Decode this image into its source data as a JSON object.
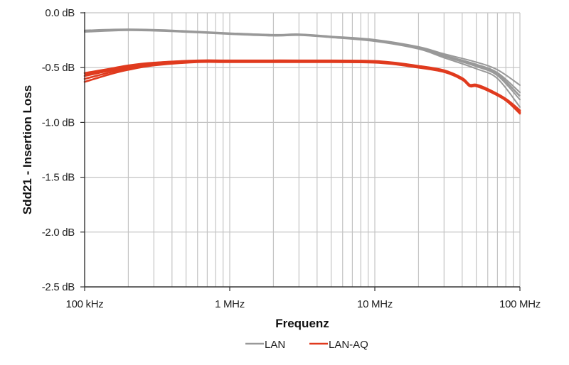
{
  "chart_data": {
    "type": "line",
    "title": "",
    "xlabel": "Frequenz",
    "ylabel": "Sdd21 - Insertion Loss",
    "x_scale": "log",
    "xlim": [
      100000,
      100000000
    ],
    "ylim": [
      -2.5,
      0.0
    ],
    "grid": true,
    "legend_position": "bottom",
    "x_ticks": [
      {
        "value": 100000,
        "label": "100 kHz"
      },
      {
        "value": 1000000,
        "label": "1 MHz"
      },
      {
        "value": 10000000,
        "label": "10 MHz"
      },
      {
        "value": 100000000,
        "label": "100 MHz"
      }
    ],
    "y_ticks": [
      {
        "value": 0.0,
        "label": "0.0 dB"
      },
      {
        "value": -0.5,
        "label": "-0.5 dB"
      },
      {
        "value": -1.0,
        "label": "-1.0 dB"
      },
      {
        "value": -1.5,
        "label": "-1.5 dB"
      },
      {
        "value": -2.0,
        "label": "-2.0 dB"
      },
      {
        "value": -2.5,
        "label": "-2.5 dB"
      }
    ],
    "series": [
      {
        "name": "LAN",
        "color": "#999999",
        "x": [
          100000,
          200000,
          400000,
          1000000,
          2000000,
          3000000,
          5000000,
          10000000,
          20000000,
          30000000,
          50000000,
          70000000,
          100000000
        ],
        "values": [
          -0.17,
          -0.155,
          -0.165,
          -0.19,
          -0.205,
          -0.2,
          -0.22,
          -0.25,
          -0.32,
          -0.39,
          -0.48,
          -0.56,
          -0.76
        ],
        "spread_high": [
          -0.16,
          -0.15,
          -0.16,
          -0.185,
          -0.2,
          -0.195,
          -0.215,
          -0.245,
          -0.31,
          -0.375,
          -0.45,
          -0.52,
          -0.66
        ],
        "spread_low": [
          -0.175,
          -0.16,
          -0.17,
          -0.195,
          -0.21,
          -0.205,
          -0.225,
          -0.26,
          -0.33,
          -0.41,
          -0.51,
          -0.6,
          -0.86
        ]
      },
      {
        "name": "LAN-AQ",
        "color": "#e03a1e",
        "x": [
          100000,
          150000,
          200000,
          300000,
          600000,
          1000000,
          3000000,
          10000000,
          20000000,
          30000000,
          40000000,
          45000000,
          50000000,
          60000000,
          80000000,
          100000000
        ],
        "values": [
          -0.57,
          -0.52,
          -0.49,
          -0.46,
          -0.44,
          -0.44,
          -0.44,
          -0.445,
          -0.49,
          -0.53,
          -0.6,
          -0.66,
          -0.66,
          -0.7,
          -0.79,
          -0.9
        ],
        "spread_high": [
          -0.55,
          -0.51,
          -0.48,
          -0.455,
          -0.435,
          -0.435,
          -0.435,
          -0.44,
          -0.485,
          -0.525,
          -0.595,
          -0.655,
          -0.655,
          -0.695,
          -0.785,
          -0.89
        ],
        "spread_low": [
          -0.63,
          -0.56,
          -0.52,
          -0.48,
          -0.45,
          -0.45,
          -0.45,
          -0.455,
          -0.5,
          -0.54,
          -0.61,
          -0.67,
          -0.67,
          -0.71,
          -0.8,
          -0.92
        ]
      }
    ]
  },
  "legend": {
    "items": [
      {
        "label": "LAN",
        "color": "#999999"
      },
      {
        "label": "LAN-AQ",
        "color": "#e03a1e"
      }
    ]
  }
}
